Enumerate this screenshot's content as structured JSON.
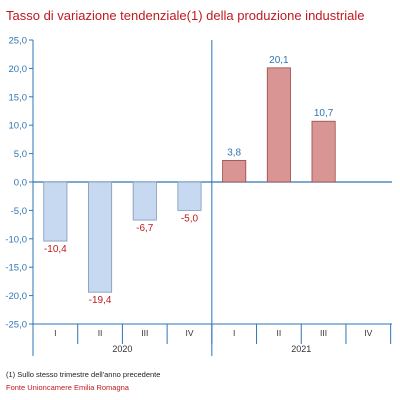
{
  "title": "Tasso di variazione tendenziale(1) della produzione industriale",
  "footnote": "(1) Sullo stesso trimestre dell'anno precedente",
  "source": "Fonte Unioncamere Emilia Romagna",
  "colors": {
    "title": "#c0191e",
    "axis": "#2e75b6",
    "neg_fill": "#c6d9f1",
    "neg_stroke": "#7f96b8",
    "pos_fill": "#d99594",
    "pos_stroke": "#9b4a49",
    "neg_label": "#c0191e",
    "pos_label": "#2e75b6",
    "tick_label": "#2e75b6"
  },
  "chart_data": {
    "type": "bar",
    "title": "Tasso di variazione tendenziale(1) della produzione industriale",
    "ylim": [
      -25,
      25
    ],
    "ytick_step": 5,
    "grid": false,
    "categories": [
      "I",
      "II",
      "III",
      "IV",
      "I",
      "II",
      "III",
      "IV"
    ],
    "years": [
      {
        "label": "2020",
        "quarters": 4
      },
      {
        "label": "2021",
        "quarters": 4
      }
    ],
    "values": [
      -10.4,
      -19.4,
      -6.7,
      -5.0,
      3.8,
      20.1,
      10.7,
      null
    ],
    "value_labels": [
      "-10,4",
      "-19,4",
      "-6,7",
      "-5,0",
      "3,8",
      "20,1",
      "10,7",
      ""
    ]
  }
}
